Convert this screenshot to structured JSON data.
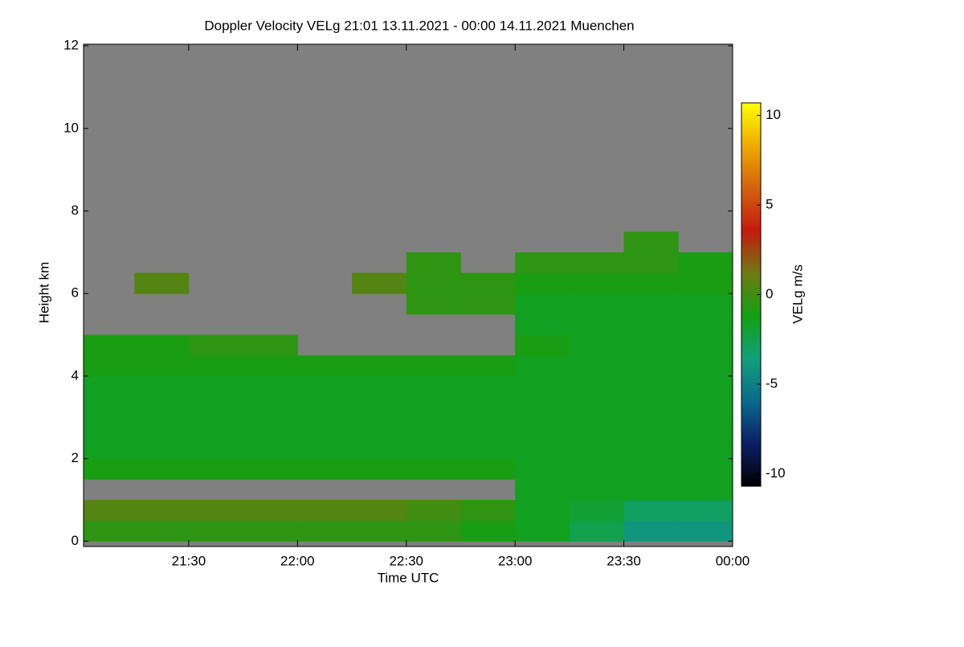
{
  "chart_data": {
    "type": "heatmap",
    "title": "Doppler Velocity VELg   21:01 13.11.2021 - 00:00 14.11.2021 Muenchen",
    "x_label": "Time UTC",
    "y_label": "Height km",
    "colorbar_label": "VELg m/s",
    "x": [
      1261,
      1275,
      1290,
      1305,
      1320,
      1335,
      1350,
      1365,
      1380,
      1395,
      1410,
      1425,
      1440
    ],
    "y": [
      0,
      0.5,
      1,
      1.5,
      2,
      2.5,
      3,
      3.5,
      4,
      4.5,
      5,
      5.5,
      6,
      6.5,
      7,
      7.5
    ],
    "z": [
      [
        -0.5,
        -0.5,
        -0.5,
        -0.5,
        -0.5,
        -0.5,
        -0.5,
        -1,
        -1.5,
        -2.5,
        -4,
        -4
      ],
      [
        0.5,
        0.5,
        0.5,
        0.5,
        0.5,
        0.5,
        0,
        -0.5,
        -1.5,
        -2,
        -3,
        -3
      ],
      [
        null,
        null,
        null,
        null,
        null,
        null,
        null,
        null,
        -1.5,
        -1.5,
        -1.5,
        -1.5
      ],
      [
        -1,
        -1,
        -1,
        -1,
        -1,
        -1,
        -1,
        -1,
        -1.5,
        -1.5,
        -1.5,
        -1.5
      ],
      [
        -1.5,
        -1.5,
        -1.5,
        -1.5,
        -1.5,
        -1.5,
        -1.5,
        -1.5,
        -1.5,
        -1.5,
        -1.5,
        -1.5
      ],
      [
        -1.5,
        -1.5,
        -1.5,
        -1.5,
        -1.5,
        -1.5,
        -1.5,
        -1.5,
        -1.5,
        -1.5,
        -1.5,
        -1.5
      ],
      [
        -1.5,
        -1.5,
        -1.5,
        -1.5,
        -1.5,
        -1.5,
        -1.5,
        -1.5,
        -1.5,
        -1.5,
        -1.5,
        -1.5
      ],
      [
        -1.5,
        -1.5,
        -1.5,
        -1.5,
        -1.5,
        -1.5,
        -1.5,
        -1.5,
        -1.5,
        -1.5,
        -1.5,
        -1.5
      ],
      [
        -1,
        -1,
        -1,
        -1,
        -1,
        -1,
        -1,
        -1,
        -1.5,
        -1.5,
        -1.5,
        -1.5
      ],
      [
        -1,
        -1,
        -0.5,
        -0.5,
        null,
        null,
        null,
        null,
        -1,
        -1.5,
        -1.5,
        -1.5
      ],
      [
        null,
        null,
        null,
        null,
        null,
        null,
        null,
        null,
        -1.5,
        -1.5,
        -1.5,
        -1.5
      ],
      [
        null,
        null,
        null,
        null,
        null,
        null,
        -0.5,
        -0.5,
        -1.5,
        -1.5,
        -1.5,
        -1.5
      ],
      [
        null,
        0.5,
        null,
        null,
        null,
        0.5,
        -0.5,
        -0.5,
        -1,
        -1,
        -1,
        -1
      ],
      [
        null,
        null,
        null,
        null,
        null,
        null,
        -0.5,
        null,
        -0.5,
        -0.5,
        -0.5,
        -1
      ],
      [
        null,
        null,
        null,
        null,
        null,
        null,
        null,
        null,
        null,
        null,
        -0.5,
        null
      ]
    ],
    "xlim": [
      1261,
      1440
    ],
    "xticks": [
      {
        "value": 1290,
        "label": "21:30"
      },
      {
        "value": 1320,
        "label": "22:00"
      },
      {
        "value": 1350,
        "label": "22:30"
      },
      {
        "value": 1380,
        "label": "23:00"
      },
      {
        "value": 1410,
        "label": "23:30"
      },
      {
        "value": 1440,
        "label": "00:00"
      }
    ],
    "ylim": [
      -0.13,
      12.04
    ],
    "yticks": [
      0,
      2,
      4,
      6,
      8,
      10,
      12
    ],
    "zlim": [
      -10.7,
      10.7
    ],
    "zticks": [
      -10,
      -5,
      0,
      5,
      10
    ],
    "colormap": [
      "#000000",
      "#0b1f66",
      "#0a6a8c",
      "#11a07a",
      "#12a012",
      "#6f7a12",
      "#c41a10",
      "#d4620e",
      "#eeac00",
      "#ffff00"
    ],
    "background_color": "#808080"
  }
}
